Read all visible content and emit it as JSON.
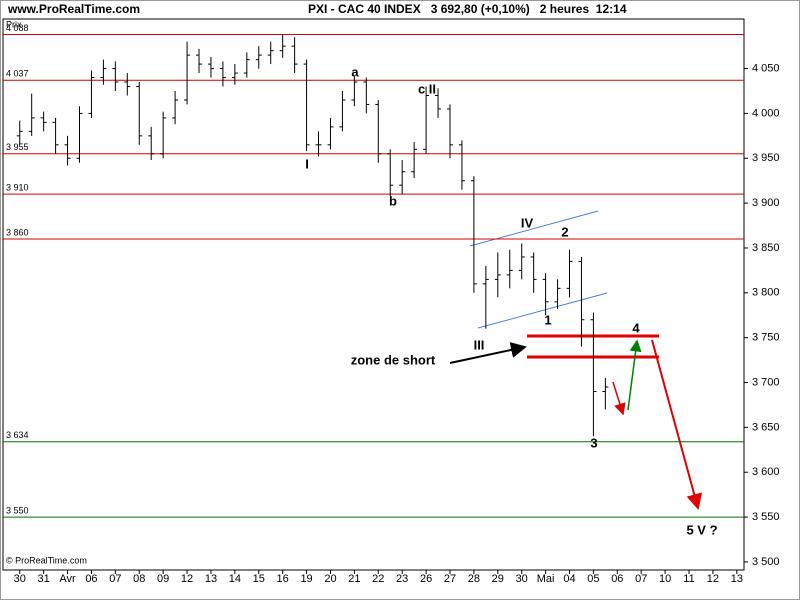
{
  "chart_data": {
    "type": "ohlc",
    "site": "www.ProRealTime.com",
    "title": "PXI - CAC 40 INDEX   3 692,80 (+0,10%)   2 heures  12:14",
    "y_label": "Prix",
    "copyright": "© ProRealTime.com",
    "xlim": [
      -0.7,
      30.3
    ],
    "xticks": [
      {
        "value": 0,
        "label": "30"
      },
      {
        "value": 1,
        "label": "31"
      },
      {
        "value": 2,
        "label": "Avr"
      },
      {
        "value": 3,
        "label": "06"
      },
      {
        "value": 4,
        "label": "07"
      },
      {
        "value": 5,
        "label": "08"
      },
      {
        "value": 6,
        "label": "09"
      },
      {
        "value": 7,
        "label": "12"
      },
      {
        "value": 8,
        "label": "13"
      },
      {
        "value": 9,
        "label": "14"
      },
      {
        "value": 10,
        "label": "15"
      },
      {
        "value": 11,
        "label": "16"
      },
      {
        "value": 12,
        "label": "19"
      },
      {
        "value": 13,
        "label": "20"
      },
      {
        "value": 14,
        "label": "21"
      },
      {
        "value": 15,
        "label": "22"
      },
      {
        "value": 16,
        "label": "23"
      },
      {
        "value": 17,
        "label": "26"
      },
      {
        "value": 18,
        "label": "27"
      },
      {
        "value": 19,
        "label": "28"
      },
      {
        "value": 20,
        "label": "29"
      },
      {
        "value": 21,
        "label": "30"
      },
      {
        "value": 22,
        "label": "Mai"
      },
      {
        "value": 23,
        "label": "04"
      },
      {
        "value": 24,
        "label": "05"
      },
      {
        "value": 25,
        "label": "06"
      },
      {
        "value": 26,
        "label": "07"
      },
      {
        "value": 27,
        "label": "10"
      },
      {
        "value": 28,
        "label": "11"
      },
      {
        "value": 29,
        "label": "12"
      },
      {
        "value": 30,
        "label": "13"
      }
    ],
    "ylim": [
      3491,
      4093
    ],
    "yticks": [
      {
        "value": 3500,
        "label": "3 500"
      },
      {
        "value": 3550,
        "label": "3 550"
      },
      {
        "value": 3600,
        "label": "3 600"
      },
      {
        "value": 3650,
        "label": "3 650"
      },
      {
        "value": 3700,
        "label": "3 700"
      },
      {
        "value": 3750,
        "label": "3 750"
      },
      {
        "value": 3800,
        "label": "3 800"
      },
      {
        "value": 3850,
        "label": "3 850"
      },
      {
        "value": 3900,
        "label": "3 900"
      },
      {
        "value": 3950,
        "label": "3 950"
      },
      {
        "value": 4000,
        "label": "4 000"
      },
      {
        "value": 4050,
        "label": "4 050"
      }
    ],
    "levels": [
      {
        "value": 4088,
        "label": "4 088",
        "color": "#d40000"
      },
      {
        "value": 4037,
        "label": "4 037",
        "color": "#d40000"
      },
      {
        "value": 3955,
        "label": "3 955",
        "color": "#d40000"
      },
      {
        "value": 3910,
        "label": "3 910",
        "color": "#d40000"
      },
      {
        "value": 3860,
        "label": "3 860",
        "color": "#d40000"
      },
      {
        "value": 3634,
        "label": "3 634",
        "color": "#007000"
      },
      {
        "value": 3550,
        "label": "3 550",
        "color": "#007000"
      }
    ],
    "color": "#000000",
    "x": [
      0,
      0.5,
      1,
      1.5,
      2,
      2.5,
      3,
      3.5,
      4,
      4.5,
      5,
      5.5,
      6,
      6.5,
      7,
      7.5,
      8,
      8.5,
      9,
      9.5,
      10,
      10.5,
      11,
      11.5,
      12,
      12.5,
      13,
      13.5,
      14,
      14.5,
      15,
      15.5,
      16,
      16.5,
      17,
      17.5,
      18,
      18.5,
      19,
      19.5,
      20,
      20.5,
      21,
      21.5,
      22,
      22.5,
      23,
      23.5,
      24,
      24.5
    ],
    "open": [
      3975,
      3980,
      3995,
      3990,
      3965,
      3950,
      4000,
      4040,
      4050,
      4035,
      4030,
      3975,
      3955,
      3995,
      4015,
      4065,
      4055,
      4050,
      4040,
      4045,
      4060,
      4065,
      4070,
      4075,
      4055,
      3965,
      3965,
      3985,
      4015,
      4035,
      4010,
      3955,
      3920,
      3935,
      3960,
      4020,
      4005,
      3965,
      3925,
      3810,
      3815,
      3820,
      3825,
      3840,
      3815,
      3790,
      3805,
      3835,
      3770,
      3690
    ],
    "high": [
      3992,
      4022,
      4002,
      3995,
      3975,
      4008,
      4048,
      4060,
      4058,
      4045,
      4035,
      3985,
      4002,
      4025,
      4080,
      4072,
      4063,
      4058,
      4055,
      4068,
      4075,
      4080,
      4088,
      4085,
      4060,
      3980,
      3995,
      4025,
      4042,
      4040,
      4015,
      3960,
      3948,
      3968,
      4030,
      4028,
      4010,
      3970,
      3930,
      3830,
      3845,
      3848,
      3855,
      3845,
      3822,
      3815,
      3848,
      3840,
      3778,
      3705
    ],
    "low": [
      3965,
      3975,
      3980,
      3955,
      3942,
      3945,
      3995,
      4032,
      4025,
      4020,
      3965,
      3948,
      3950,
      3988,
      4010,
      4045,
      4040,
      4030,
      4032,
      4040,
      4050,
      4055,
      4062,
      4045,
      3958,
      3952,
      3960,
      3980,
      4008,
      4000,
      3945,
      3908,
      3910,
      3928,
      3955,
      3995,
      3950,
      3915,
      3800,
      3760,
      3795,
      3805,
      3815,
      3800,
      3775,
      3782,
      3795,
      3740,
      3640,
      3670
    ],
    "close": [
      3980,
      3995,
      3990,
      3965,
      3950,
      4000,
      4040,
      4050,
      4035,
      4030,
      3975,
      3955,
      3995,
      4015,
      4065,
      4055,
      4050,
      4040,
      4045,
      4060,
      4065,
      4070,
      4075,
      4055,
      3965,
      3965,
      3985,
      4015,
      4035,
      4010,
      3955,
      3920,
      3935,
      3960,
      4020,
      4005,
      3965,
      3925,
      3810,
      3815,
      3820,
      3825,
      3840,
      3815,
      3790,
      3805,
      3835,
      3770,
      3690,
      3695
    ],
    "annotations": [
      "a",
      "I",
      "b",
      "c II",
      "IV",
      "III",
      "1",
      "2",
      "3",
      "4",
      "5 V ?",
      "zone de short"
    ]
  }
}
